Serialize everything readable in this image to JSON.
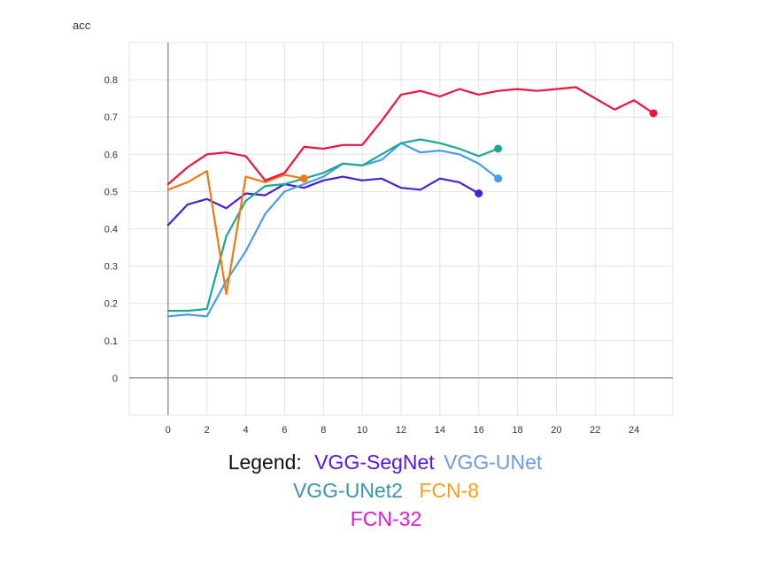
{
  "chart_data": {
    "type": "line",
    "ylabel": "acc",
    "xlim": [
      -2,
      26
    ],
    "ylim": [
      -0.1,
      0.9
    ],
    "xticks": [
      0,
      2,
      4,
      6,
      8,
      10,
      12,
      14,
      16,
      18,
      20,
      22,
      24
    ],
    "yticks": [
      0,
      0.1,
      0.2,
      0.3,
      0.4,
      0.5,
      0.6,
      0.7,
      0.8
    ],
    "ytick_labels": [
      "0",
      "0.1",
      "0.2",
      "0.3",
      "0.4",
      "0.5",
      "0.6",
      "0.7",
      "0.8"
    ],
    "grid": true,
    "series": [
      {
        "name": "VGG-SegNet",
        "color": "#4a1fd6",
        "x": [
          0,
          1,
          2,
          3,
          4,
          5,
          6,
          7,
          8,
          9,
          10,
          11,
          12,
          13,
          14,
          15,
          16
        ],
        "y": [
          0.41,
          0.465,
          0.48,
          0.455,
          0.495,
          0.49,
          0.52,
          0.51,
          0.53,
          0.54,
          0.53,
          0.535,
          0.51,
          0.505,
          0.535,
          0.525,
          0.495
        ]
      },
      {
        "name": "VGG-UNet",
        "color": "#4a9be8",
        "x": [
          0,
          1,
          2,
          3,
          4,
          5,
          6,
          7,
          8,
          9,
          10,
          11,
          12,
          13,
          14,
          15,
          16,
          17
        ],
        "y": [
          0.165,
          0.17,
          0.165,
          0.26,
          0.34,
          0.44,
          0.5,
          0.52,
          0.54,
          0.575,
          0.57,
          0.585,
          0.63,
          0.605,
          0.61,
          0.6,
          0.575,
          0.535
        ]
      },
      {
        "name": "VGG-UNet2",
        "color": "#1aa895",
        "x": [
          0,
          1,
          2,
          3,
          4,
          5,
          6,
          7,
          8,
          9,
          10,
          11,
          12,
          13,
          14,
          15,
          16,
          17
        ],
        "y": [
          0.18,
          0.18,
          0.185,
          0.38,
          0.475,
          0.515,
          0.52,
          0.535,
          0.55,
          0.575,
          0.57,
          0.6,
          0.63,
          0.64,
          0.63,
          0.615,
          0.595,
          0.615
        ]
      },
      {
        "name": "FCN-8",
        "color": "#f07a10",
        "x": [
          0,
          1,
          2,
          3,
          4,
          5,
          6,
          7
        ],
        "y": [
          0.505,
          0.525,
          0.555,
          0.225,
          0.54,
          0.525,
          0.545,
          0.535
        ]
      },
      {
        "name": "FCN-32",
        "color": "#f0143c",
        "x": [
          0,
          1,
          2,
          3,
          4,
          5,
          6,
          7,
          8,
          9,
          10,
          11,
          12,
          13,
          14,
          15,
          16,
          17,
          18,
          19,
          20,
          21,
          22,
          23,
          24,
          25
        ],
        "y": [
          0.52,
          0.565,
          0.6,
          0.605,
          0.595,
          0.53,
          0.55,
          0.62,
          0.615,
          0.625,
          0.625,
          0.69,
          0.76,
          0.77,
          0.755,
          0.775,
          0.76,
          0.77,
          0.775,
          0.77,
          0.775,
          0.78,
          0.75,
          0.72,
          0.745,
          0.71
        ]
      }
    ]
  },
  "legend": {
    "title": "Legend:",
    "entries": [
      {
        "label": "VGG-SegNet",
        "color": "#5b17e0"
      },
      {
        "label": "VGG-UNet",
        "color": "#6e9be0"
      },
      {
        "label": "VGG-UNet2",
        "color": "#3a94b0"
      },
      {
        "label": "FCN-8",
        "color": "#f5a018"
      },
      {
        "label": "FCN-32",
        "color": "#e519d8"
      }
    ]
  }
}
